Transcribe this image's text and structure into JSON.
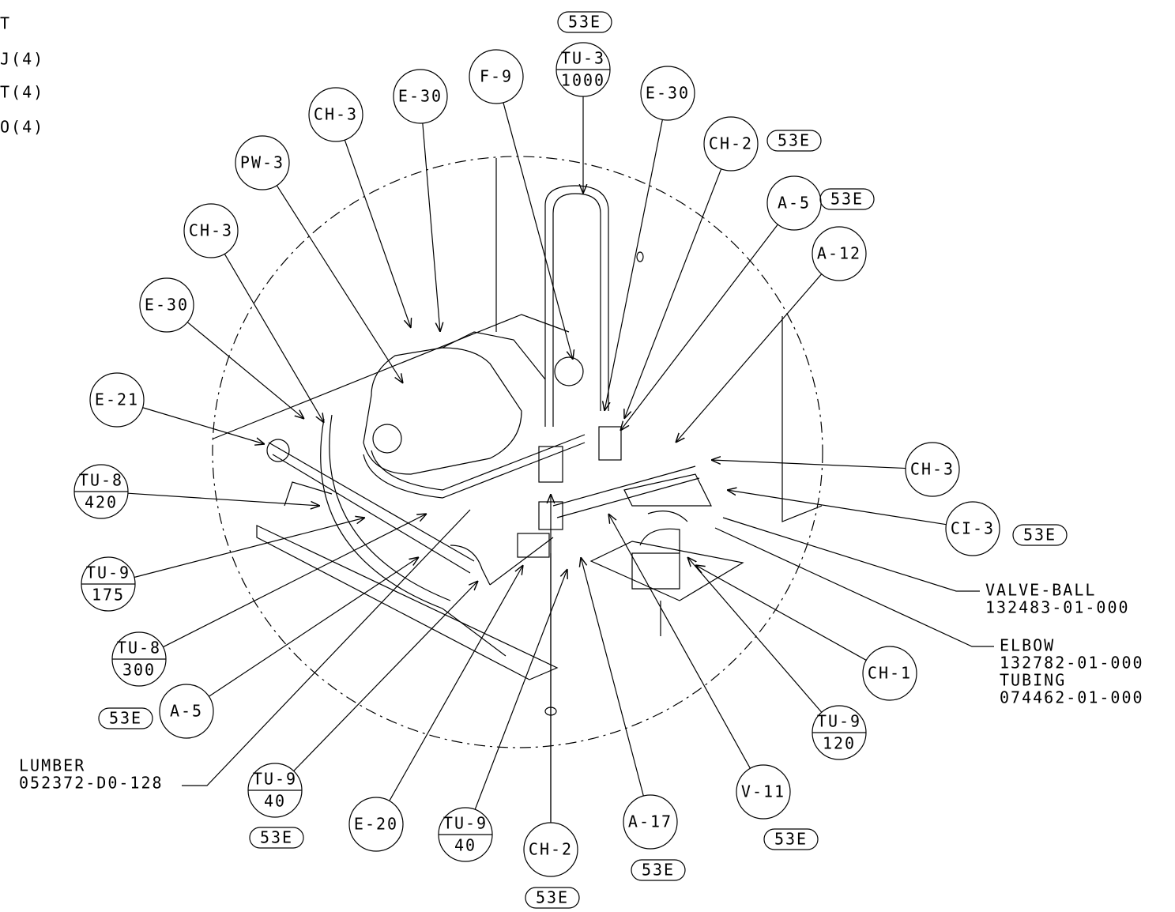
{
  "side_notes": [
    "T",
    "J(4)",
    "T(4)",
    "O(4)"
  ],
  "balloons": [
    {
      "label": "TU-3",
      "qty": "1000"
    },
    {
      "label": "F-9"
    },
    {
      "label": "E-30"
    },
    {
      "label": "CH-3"
    },
    {
      "label": "PW-3"
    },
    {
      "label": "CH-3"
    },
    {
      "label": "E-30"
    },
    {
      "label": "E-21"
    },
    {
      "label": "TU-8",
      "qty": "420"
    },
    {
      "label": "TU-9",
      "qty": "175"
    },
    {
      "label": "TU-8",
      "qty": "300"
    },
    {
      "label": "A-5"
    },
    {
      "label": "TU-9",
      "qty": "40"
    },
    {
      "label": "E-20"
    },
    {
      "label": "TU-9",
      "qty": "40"
    },
    {
      "label": "CH-2"
    },
    {
      "label": "A-17"
    },
    {
      "label": "V-11"
    },
    {
      "label": "TU-9",
      "qty": "120"
    },
    {
      "label": "CH-1"
    },
    {
      "label": "CI-3"
    },
    {
      "label": "CH-3"
    },
    {
      "label": "A-12"
    },
    {
      "label": "A-5"
    },
    {
      "label": "CH-2"
    },
    {
      "label": "E-30"
    }
  ],
  "tags": [
    "53E",
    "53E",
    "53E",
    "53E",
    "53E",
    "53E",
    "53E",
    "53E",
    "53E"
  ],
  "notes": [
    {
      "lines": [
        "VALVE-BALL",
        "132483-01-000"
      ]
    },
    {
      "lines": [
        "ELBOW",
        "132782-01-000",
        "TUBING",
        "074462-01-000"
      ]
    },
    {
      "lines": [
        "LUMBER",
        "052372-D0-128"
      ]
    }
  ]
}
